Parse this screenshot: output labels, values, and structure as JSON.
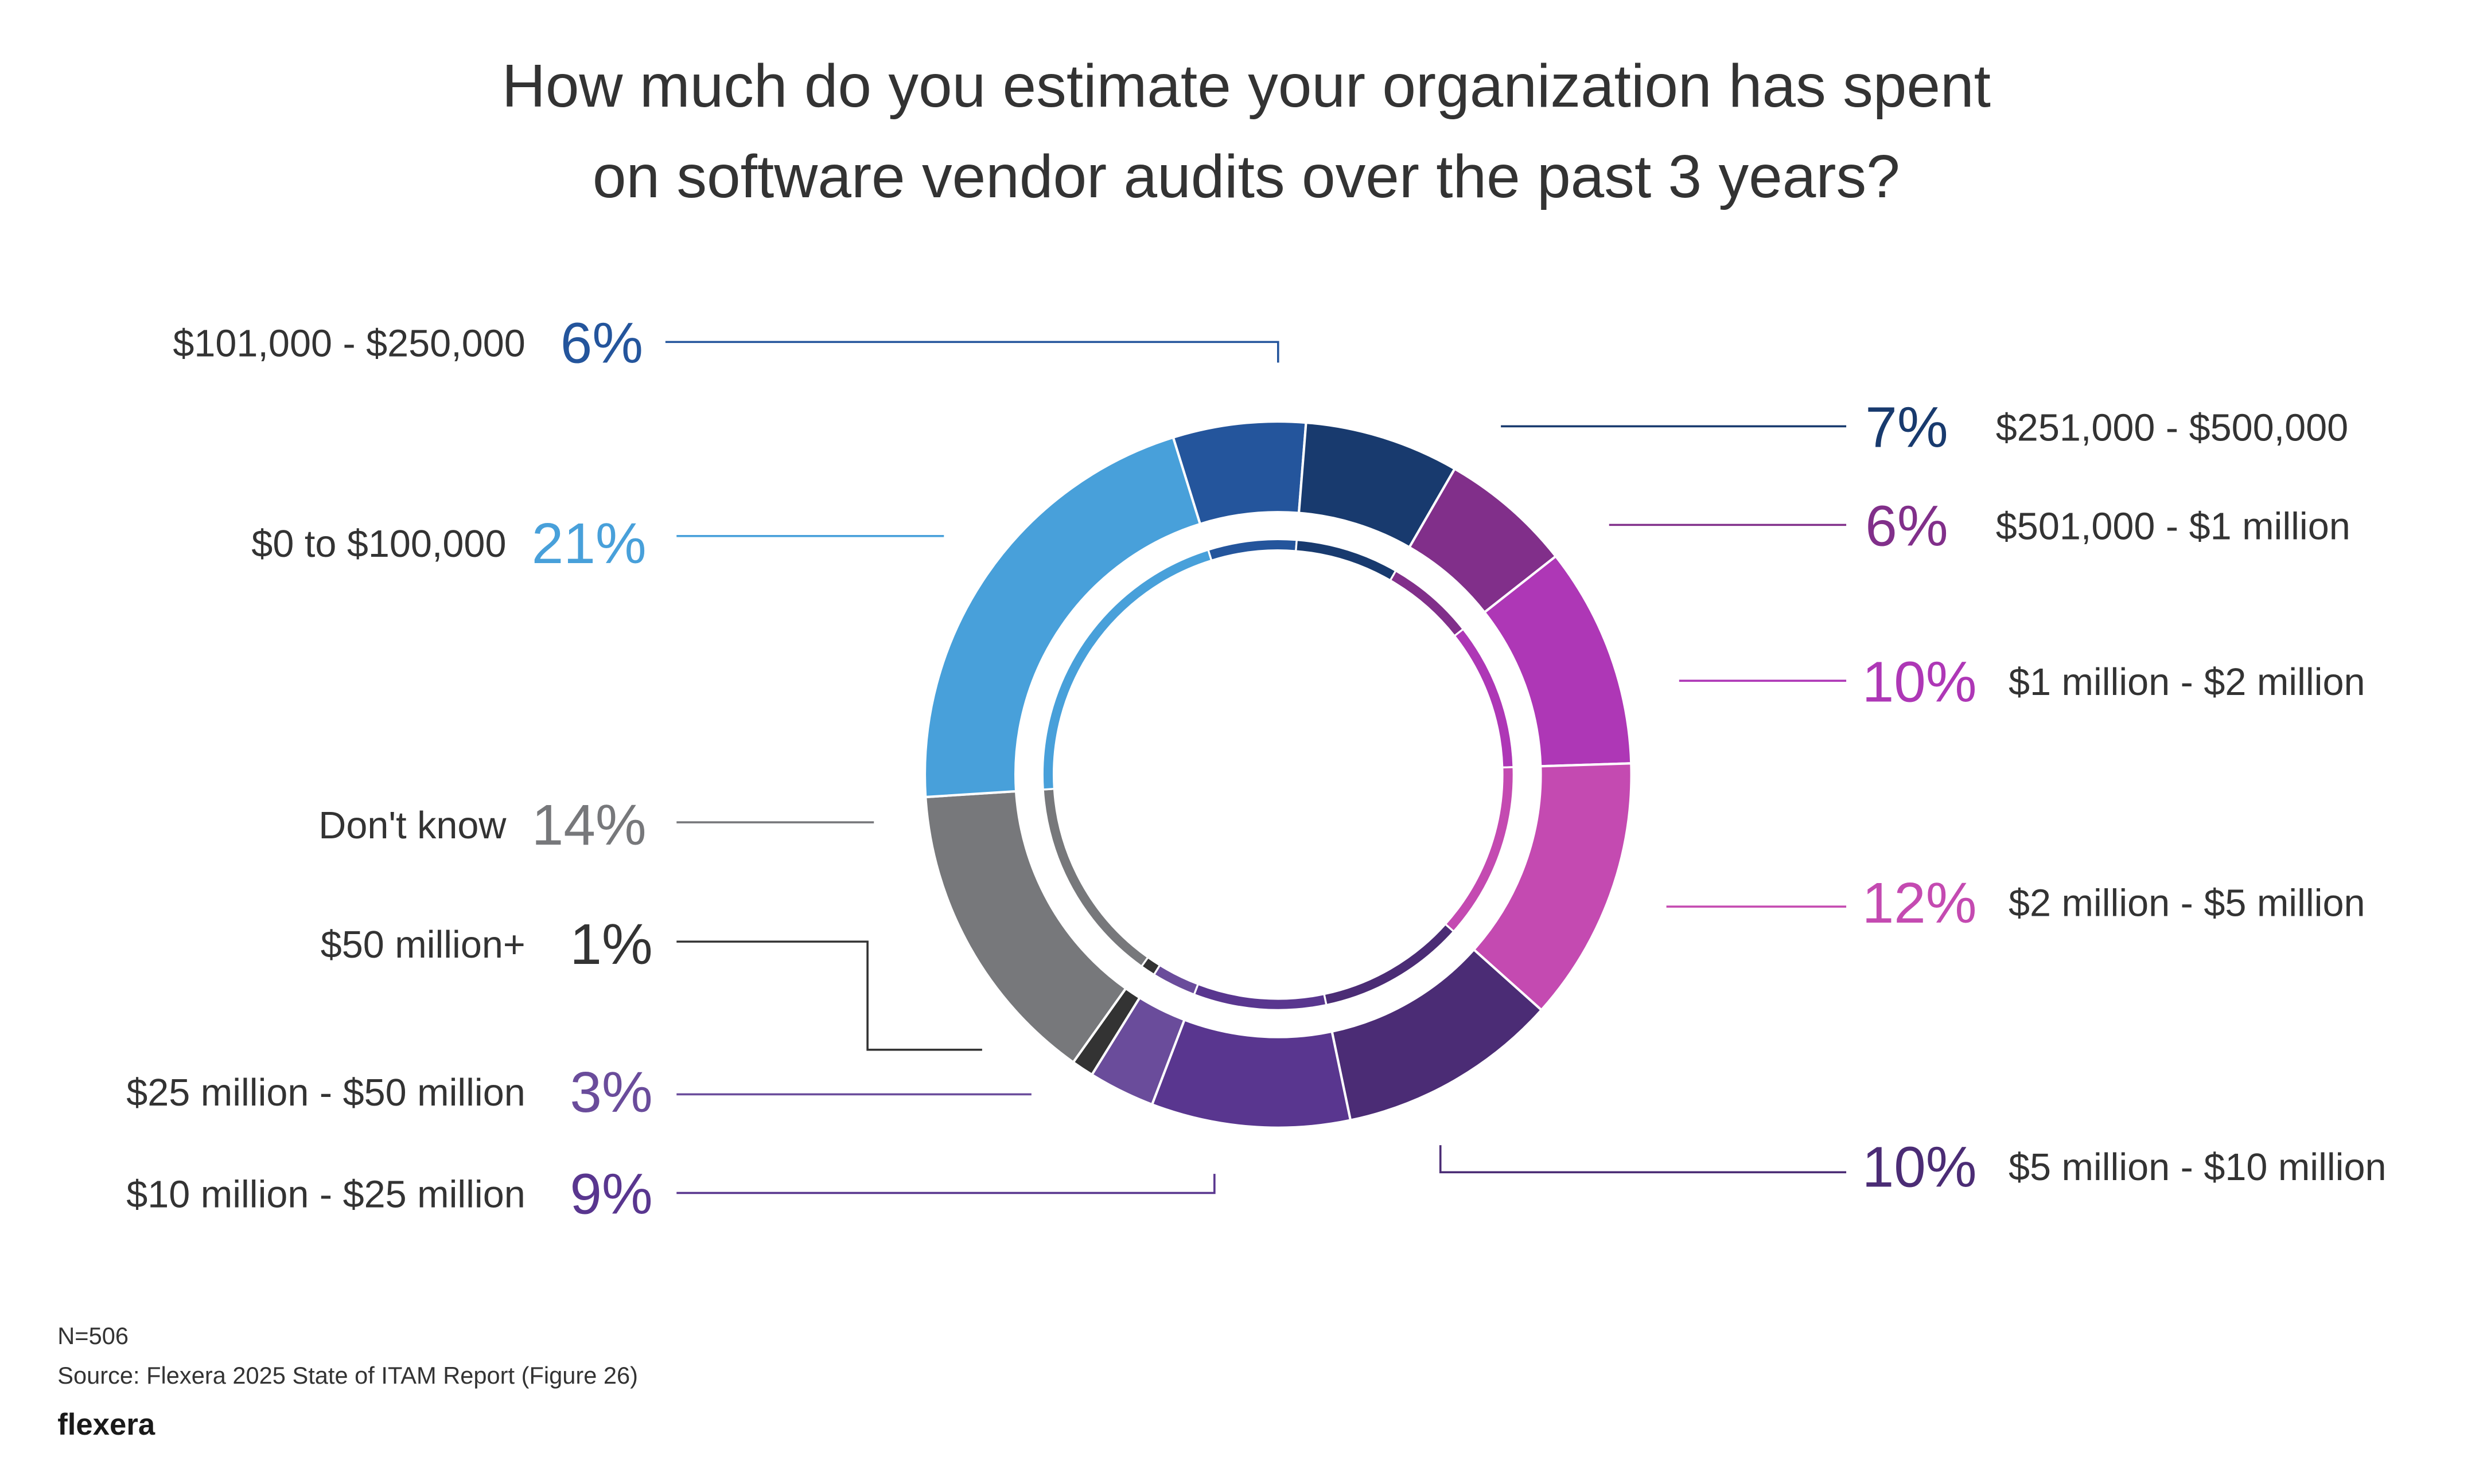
{
  "chart_data": {
    "type": "pie",
    "subtype": "donut",
    "title_lines": [
      "How much do you estimate your organization has spent",
      "on software vendor audits over the past 3 years?"
    ],
    "categories": [
      "$101,000 - $250,000",
      "$251,000 - $500,000",
      "$501,000 - $1 million",
      "$1 million - $2 million",
      "$2 million - $5 million",
      "$5 million - $10 million",
      "$10 million - $25 million",
      "$25 million - $50 million",
      "$50 million+",
      "Don't know",
      "$0 to $100,000"
    ],
    "values": [
      6,
      7,
      6,
      10,
      12,
      10,
      9,
      3,
      1,
      14,
      21
    ],
    "value_labels": [
      "6%",
      "7%",
      "6%",
      "10%",
      "12%",
      "10%",
      "9%",
      "3%",
      "1%",
      "14%",
      "21%"
    ],
    "colors": [
      "#24559c",
      "#183a6e",
      "#812f8a",
      "#ae37b6",
      "#c44ab1",
      "#4b2c75",
      "#59368f",
      "#6a4c9b",
      "#333333",
      "#77787b",
      "#48a0da"
    ],
    "label_sides": [
      "left",
      "right",
      "right",
      "right",
      "right",
      "right",
      "left",
      "left",
      "left",
      "left",
      "left"
    ],
    "unit": "%",
    "legend": "callout labels"
  },
  "footer": {
    "n": "N=506",
    "source": "Source: Flexera 2025 State of ITAM Report (Figure 26)",
    "logo": "flexera"
  }
}
